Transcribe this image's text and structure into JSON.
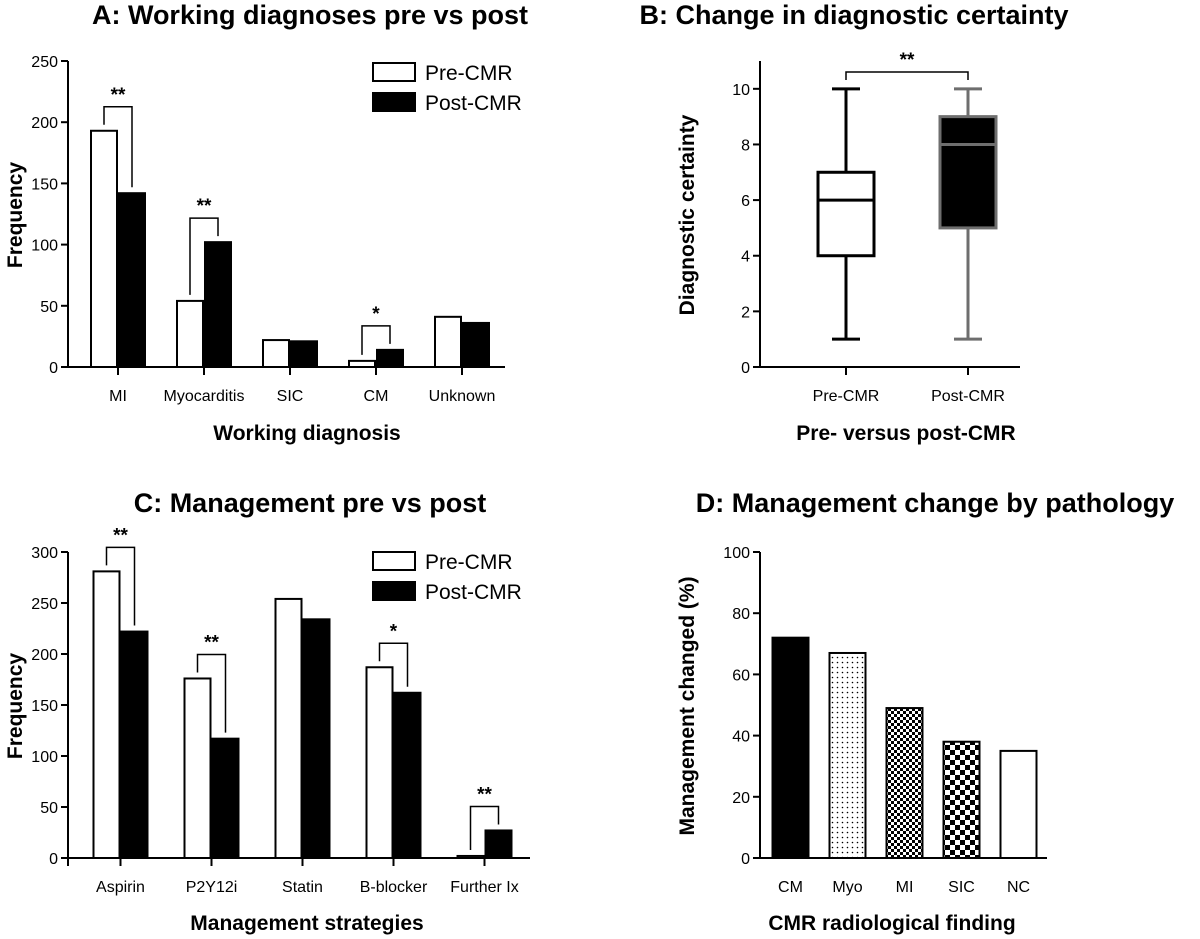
{
  "chart_data": [
    {
      "id": "A",
      "type": "bar",
      "title": "A: Working diagnoses pre vs post",
      "xlabel": "Working diagnosis",
      "ylabel": "Frequency",
      "ylim": [
        0,
        250
      ],
      "yticks": [
        0,
        50,
        100,
        150,
        200,
        250
      ],
      "categories": [
        "MI",
        "Myocarditis",
        "SIC",
        "CM",
        "Unknown"
      ],
      "series": [
        {
          "name": "Pre-CMR",
          "fill": "white",
          "values": [
            193,
            54,
            22,
            5,
            41
          ]
        },
        {
          "name": "Post-CMR",
          "fill": "black",
          "values": [
            142,
            102,
            21,
            14,
            36
          ]
        }
      ],
      "significance": [
        "**",
        "**",
        "",
        "*",
        ""
      ],
      "legend": "top-right"
    },
    {
      "id": "B",
      "type": "box",
      "title": "B: Change in diagnostic certainty",
      "xlabel": "Pre- versus post-CMR",
      "ylabel": "Diagnostic certainty",
      "ylim": [
        0,
        11
      ],
      "yticks": [
        0,
        2,
        4,
        6,
        8,
        10
      ],
      "categories": [
        "Pre-CMR",
        "Post-CMR"
      ],
      "boxes": [
        {
          "name": "Pre-CMR",
          "min": 1,
          "q1": 4,
          "median": 6,
          "q3": 7,
          "max": 10,
          "fill": "#ffffff",
          "stroke": "#000000"
        },
        {
          "name": "Post-CMR",
          "min": 1,
          "q1": 5,
          "median": 8,
          "q3": 9,
          "max": 10,
          "fill": "#000000",
          "stroke": "#6e6e6e"
        }
      ],
      "significance": "**"
    },
    {
      "id": "C",
      "type": "bar",
      "title": "C: Management pre vs post",
      "xlabel": "Management strategies",
      "ylabel": "Frequency",
      "ylim": [
        0,
        300
      ],
      "yticks": [
        0,
        50,
        100,
        150,
        200,
        250,
        300
      ],
      "categories": [
        "Aspirin",
        "P2Y12i",
        "Statin",
        "B-blocker",
        "Further Ix"
      ],
      "series": [
        {
          "name": "Pre-CMR",
          "fill": "white",
          "values": [
            281,
            176,
            254,
            187,
            2
          ]
        },
        {
          "name": "Post-CMR",
          "fill": "black",
          "values": [
            222,
            117,
            234,
            162,
            27
          ]
        }
      ],
      "significance": [
        "**",
        "**",
        "",
        "*",
        "**"
      ],
      "legend": "top-right"
    },
    {
      "id": "D",
      "type": "bar",
      "title": "D: Management change by pathology",
      "xlabel": "CMR radiological finding",
      "ylabel": "Management changed (%)",
      "ylim": [
        0,
        100
      ],
      "yticks": [
        0,
        20,
        40,
        60,
        80,
        100
      ],
      "categories": [
        "CM",
        "Myo",
        "MI",
        "SIC",
        "NC"
      ],
      "values": [
        72,
        67,
        49,
        38,
        35
      ],
      "patterns": [
        "solid",
        "dots",
        "fine-check",
        "check",
        "white"
      ]
    }
  ]
}
